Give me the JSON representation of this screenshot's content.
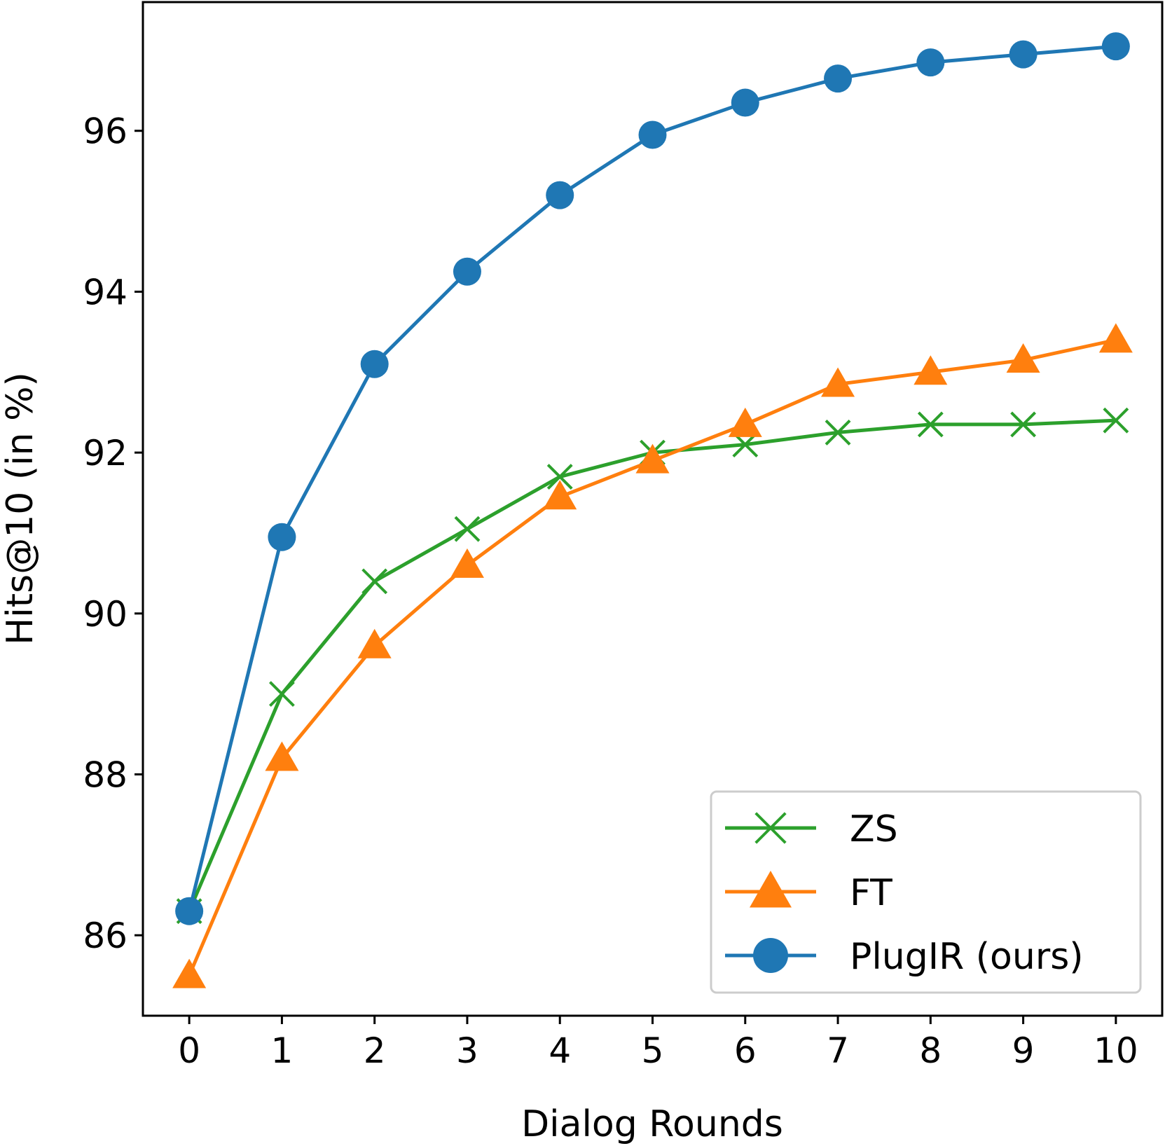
{
  "chart_data": {
    "type": "line",
    "title": "",
    "xlabel": "Dialog Rounds",
    "ylabel": "Hits@10 (in %)",
    "x": [
      0,
      1,
      2,
      3,
      4,
      5,
      6,
      7,
      8,
      9,
      10
    ],
    "xlim": [
      -0.5,
      10.5
    ],
    "ylim": [
      85.0,
      97.6
    ],
    "xticks": [
      "0",
      "1",
      "2",
      "3",
      "4",
      "5",
      "6",
      "7",
      "8",
      "9",
      "10"
    ],
    "yticks": [
      "86",
      "88",
      "90",
      "92",
      "94",
      "96"
    ],
    "grid": false,
    "legend_position": "lower right",
    "series": [
      {
        "name": "ZS",
        "color": "#2ca02c",
        "marker": "x",
        "values": [
          86.3,
          89.0,
          90.4,
          91.05,
          91.7,
          92.0,
          92.1,
          92.25,
          92.35,
          92.35,
          92.4
        ]
      },
      {
        "name": "FT",
        "color": "#ff7f0e",
        "marker": "triangle",
        "values": [
          85.5,
          88.2,
          89.6,
          90.6,
          91.45,
          91.9,
          92.35,
          92.85,
          93.0,
          93.15,
          93.4
        ]
      },
      {
        "name": "PlugIR (ours)",
        "color": "#1f77b4",
        "marker": "circle",
        "values": [
          86.3,
          90.95,
          93.1,
          94.25,
          95.2,
          95.95,
          96.35,
          96.65,
          96.85,
          96.95,
          97.05
        ]
      }
    ]
  }
}
